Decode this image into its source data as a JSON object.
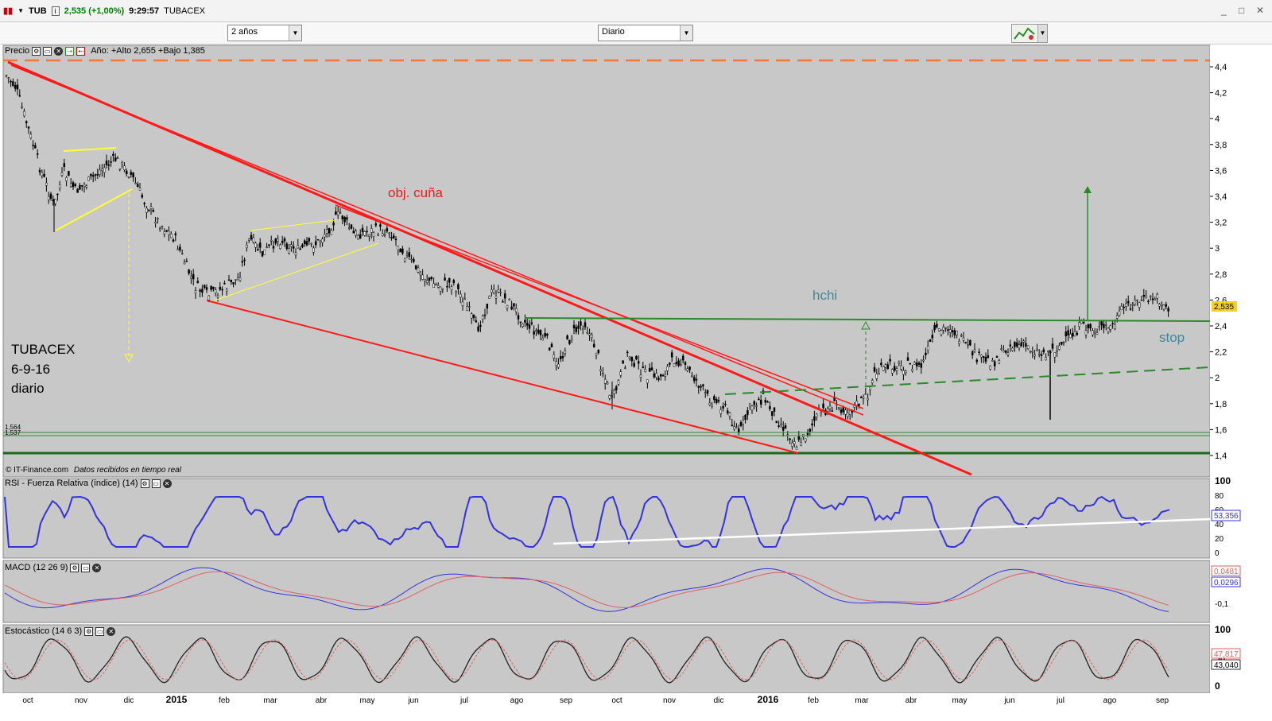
{
  "title_bar": {
    "symbol": "TUB",
    "price_info": "2,535 (+1,00%)",
    "time": "9:29:57",
    "name": "TUBACEX",
    "info_icon": "i"
  },
  "toolbar": {
    "range": "2 años",
    "interval": "Diario"
  },
  "price_panel": {
    "header_label": "Precio",
    "range_info": "Año: +Alto 2,655 +Bajo 1,385",
    "y_ticks": [
      "4,4",
      "4,2",
      "4",
      "3,8",
      "3,6",
      "3,4",
      "3,2",
      "3",
      "2,8",
      "2,6",
      "2,4",
      "2,2",
      "2",
      "1,8",
      "1,6",
      "1,4"
    ],
    "last_price_badge": "2,535",
    "level_labels": [
      "1,564",
      "1,537"
    ],
    "annotations": {
      "objective": "obj. cuña",
      "pattern": "hchi",
      "stop": "stop",
      "note_line1": "TUBACEX",
      "note_line2": "6-9-16",
      "note_line3": "diario"
    },
    "footer": "© IT-Finance.com",
    "footer_italic": "Datos recibidos en tiempo real"
  },
  "rsi_panel": {
    "header_label": "RSI - Fuerza Relativa (índice) (14)",
    "y_ticks": [
      "100",
      "80",
      "60",
      "40",
      "20",
      "0"
    ],
    "value_badge": "53,356"
  },
  "macd_panel": {
    "header_label": "MACD (12 26 9)",
    "y_ticks": [
      "-0,1"
    ],
    "value_badges": [
      "0,0481",
      "0,0296"
    ]
  },
  "stoch_panel": {
    "header_label": "Estocástico (14 6 3)",
    "y_ticks": [
      "100",
      "50",
      "0"
    ],
    "value_badges": [
      "47,817",
      "43,040"
    ]
  },
  "x_axis_labels": [
    "oct",
    "nov",
    "dic",
    "2015",
    "feb",
    "mar",
    "abr",
    "may",
    "jun",
    "jul",
    "ago",
    "sep",
    "oct",
    "nov",
    "dic",
    "2016",
    "feb",
    "mar",
    "abr",
    "may",
    "jun",
    "jul",
    "ago",
    "sep"
  ],
  "colors": {
    "chart_bg": "#c8c8c8",
    "trend_red": "#ff1a1a",
    "neckline_green": "#2a8a2a",
    "resistance_orange": "#f07838",
    "rsi_blue": "#3333dd",
    "macd_red": "#e06060",
    "annotation_teal": "#3a8a9a",
    "price_badge": "#f5d020"
  }
}
